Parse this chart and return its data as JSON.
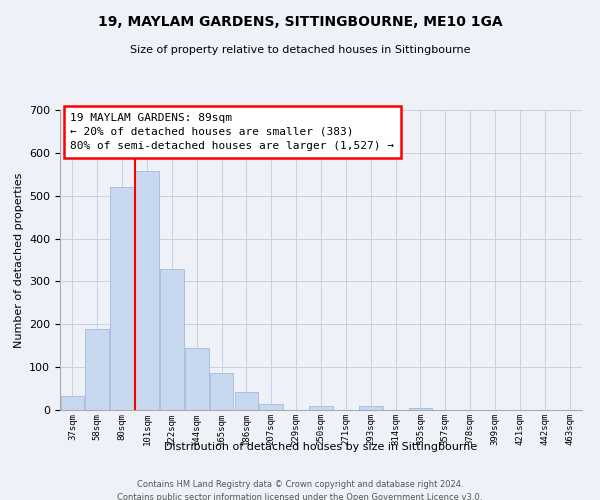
{
  "title": "19, MAYLAM GARDENS, SITTINGBOURNE, ME10 1GA",
  "subtitle": "Size of property relative to detached houses in Sittingbourne",
  "xlabel": "Distribution of detached houses by size in Sittingbourne",
  "ylabel": "Number of detached properties",
  "bar_labels": [
    "37sqm",
    "58sqm",
    "80sqm",
    "101sqm",
    "122sqm",
    "144sqm",
    "165sqm",
    "186sqm",
    "207sqm",
    "229sqm",
    "250sqm",
    "271sqm",
    "293sqm",
    "314sqm",
    "335sqm",
    "357sqm",
    "378sqm",
    "399sqm",
    "421sqm",
    "442sqm",
    "463sqm"
  ],
  "bar_values": [
    33,
    190,
    520,
    557,
    330,
    145,
    87,
    42,
    15,
    0,
    9,
    0,
    10,
    0,
    4,
    0,
    0,
    0,
    0,
    0,
    0
  ],
  "bar_color": "#c8d8ee",
  "bar_edge_color": "#a8c0e0",
  "red_line_x": 2.5,
  "annotation_title": "19 MAYLAM GARDENS: 89sqm",
  "annotation_line1": "← 20% of detached houses are smaller (383)",
  "annotation_line2": "80% of semi-detached houses are larger (1,527) →",
  "ylim": [
    0,
    700
  ],
  "yticks": [
    0,
    100,
    200,
    300,
    400,
    500,
    600,
    700
  ],
  "footer1": "Contains HM Land Registry data © Crown copyright and database right 2024.",
  "footer2": "Contains public sector information licensed under the Open Government Licence v3.0.",
  "bg_color": "#eef2f8",
  "plot_bg_color": "#eef2f8",
  "grid_color": "#c8d0e0"
}
